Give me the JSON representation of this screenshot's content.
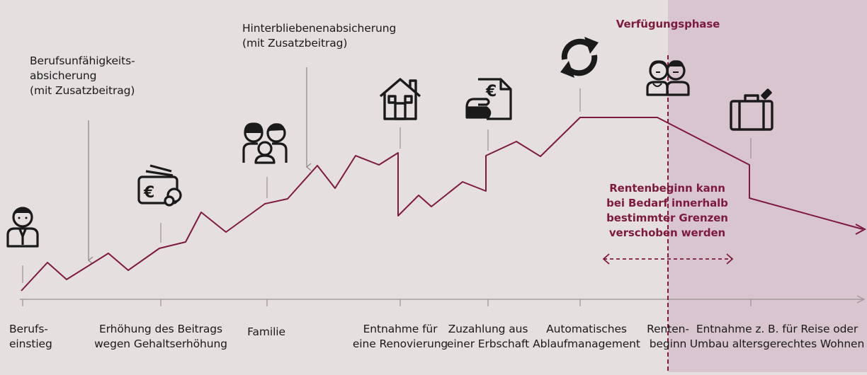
{
  "colors": {
    "background": "#e6dfdf",
    "phase_background": "#d9c5cf",
    "accent": "#7d1a3f",
    "axis": "#9a9294",
    "icon": "#1a1a1a"
  },
  "phase_label": "Verfügungsphase",
  "flex_note": "Rentenbeginn kann\nbei Bedarf innerhalb\nbestimmter Grenzen\nverschoben werden",
  "annotations": {
    "bu": "Berufsunfähigkeits-\nabsicherung\n(mit Zusatzbeitrag)",
    "hinterbliebene": "Hinterbliebenenabsicherung\n(mit Zusatzbeitrag)"
  },
  "milestones": [
    {
      "label": "Berufs-\neinstieg",
      "icon": "person-icon"
    },
    {
      "label": "Erhöhung des Beitrags\nwegen Gehaltserhöhung",
      "icon": "wallet-euro-icon"
    },
    {
      "label": "Familie",
      "icon": "family-icon"
    },
    {
      "label": "Entnahme für\neine Renovierung",
      "icon": "house-icon"
    },
    {
      "label": "Zuzahlung aus\neiner Erbschaft",
      "icon": "document-euro-icon"
    },
    {
      "label": "Automatisches\nAblaufmanagement",
      "icon": "refresh-arrows-icon"
    },
    {
      "label": "Renten-\nbeginn",
      "icon": "elderly-couple-icon"
    },
    {
      "label": "Entnahme z. B. für Reise oder\nUmbau altersgerechtes Wohnen",
      "icon": "suitcase-icon"
    }
  ]
}
